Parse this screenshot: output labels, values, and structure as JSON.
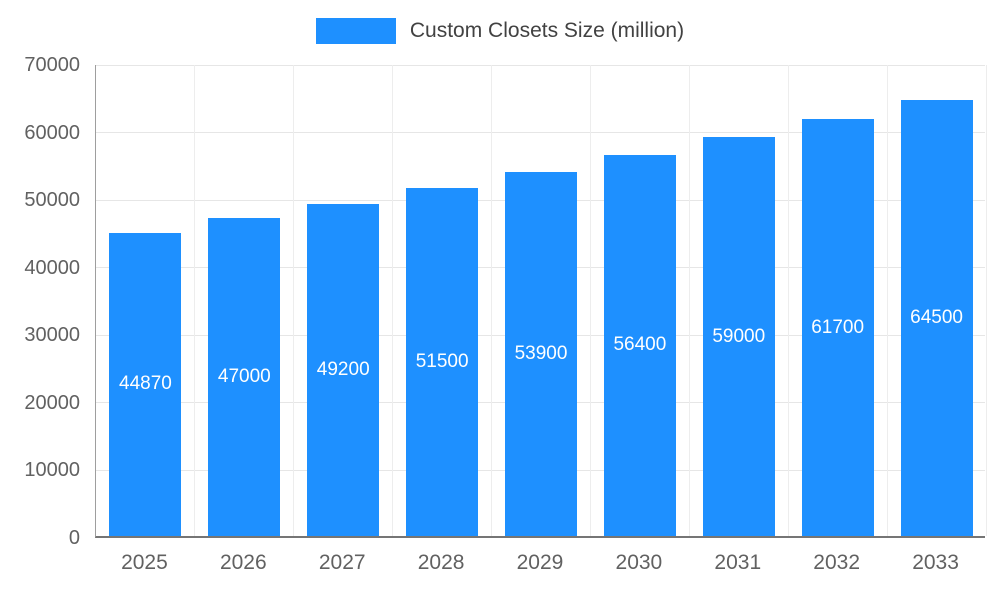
{
  "legend": {
    "label": "Custom Closets Size (million)",
    "swatch_color": "#1e90ff"
  },
  "chart_data": {
    "type": "bar",
    "title": "Custom Closets Size (million)",
    "categories": [
      "2025",
      "2026",
      "2027",
      "2028",
      "2029",
      "2030",
      "2031",
      "2032",
      "2033"
    ],
    "values": [
      44870,
      47000,
      49200,
      51500,
      53900,
      56400,
      59000,
      61700,
      64500
    ],
    "value_labels": [
      "44870",
      "47000",
      "49200",
      "51500",
      "53900",
      "56400",
      "59000",
      "61700",
      "64500"
    ],
    "xlabel": "",
    "ylabel": "",
    "ylim": [
      0,
      70000
    ],
    "yticks": [
      0,
      10000,
      20000,
      30000,
      40000,
      50000,
      60000,
      70000
    ],
    "ytick_labels": [
      "0",
      "10000",
      "20000",
      "30000",
      "40000",
      "50000",
      "60000",
      "70000"
    ],
    "grid": true,
    "legend_position": "top",
    "bar_color": "#1e90ff",
    "value_label_color": "#ffffff"
  }
}
